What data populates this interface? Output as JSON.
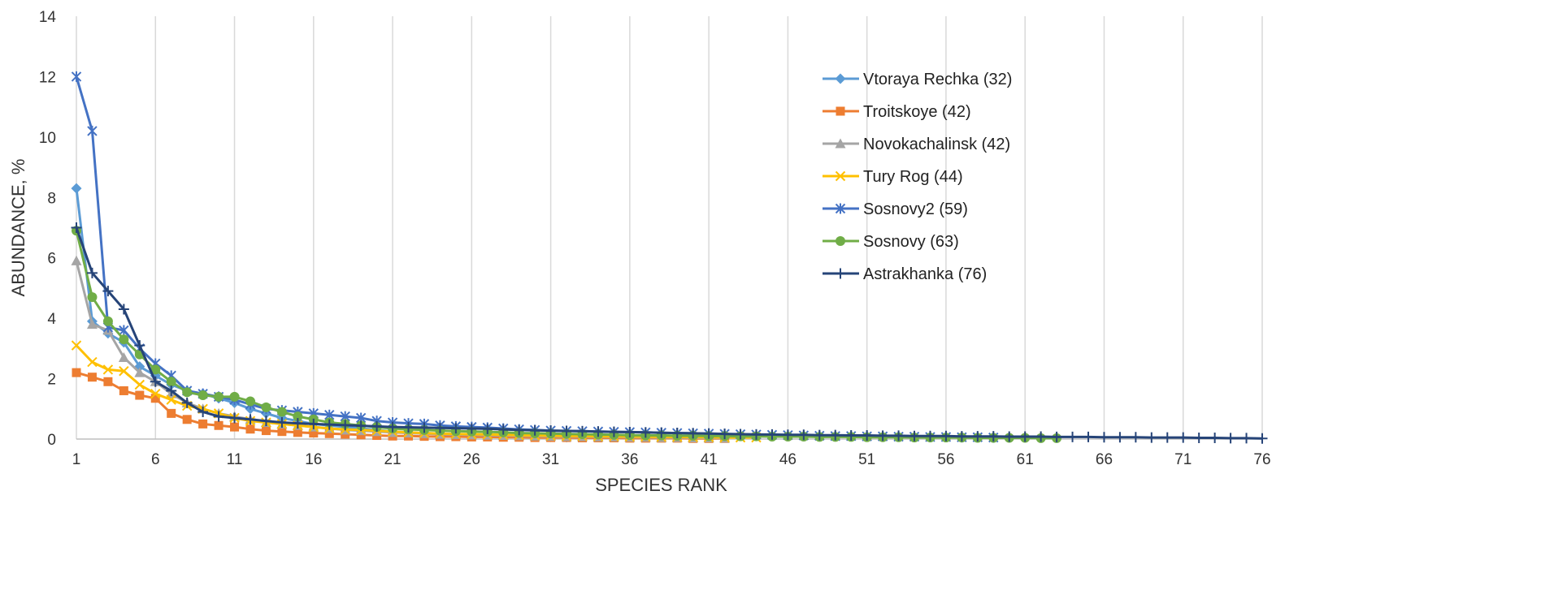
{
  "chart_data": {
    "type": "line",
    "xlabel": "SPECIES RANK",
    "ylabel": "ABUNDANCE, %",
    "xlim": [
      1,
      76
    ],
    "ylim": [
      0,
      14
    ],
    "x_ticks": [
      1,
      6,
      11,
      16,
      21,
      26,
      31,
      36,
      41,
      46,
      51,
      56,
      61,
      66,
      71,
      76
    ],
    "y_ticks": [
      0,
      2,
      4,
      6,
      8,
      10,
      12,
      14
    ],
    "x_tick_labels": [
      "1",
      "6",
      "11",
      "16",
      "21",
      "26",
      "31",
      "36",
      "41",
      "46",
      "51",
      "56",
      "61",
      "66",
      "71",
      "76"
    ],
    "y_tick_labels": [
      "0",
      "2",
      "4",
      "6",
      "8",
      "10",
      "12",
      "14"
    ],
    "grid": "vertical",
    "legend_position": "top-right",
    "series": [
      {
        "name": "Vtoraya Rechka (32)",
        "color": "#5b9bd5",
        "marker": "diamond",
        "values": [
          8.3,
          3.9,
          3.5,
          3.2,
          2.4,
          2.1,
          1.8,
          1.6,
          1.5,
          1.35,
          1.2,
          1.0,
          0.85,
          0.7,
          0.6,
          0.5,
          0.45,
          0.4,
          0.35,
          0.3,
          0.25,
          0.22,
          0.2,
          0.18,
          0.16,
          0.14,
          0.12,
          0.1,
          0.09,
          0.08,
          0.07,
          0.06
        ]
      },
      {
        "name": "Troitskoye (42)",
        "color": "#ed7d31",
        "marker": "square",
        "values": [
          2.2,
          2.05,
          1.9,
          1.6,
          1.45,
          1.35,
          0.85,
          0.65,
          0.5,
          0.45,
          0.4,
          0.33,
          0.28,
          0.25,
          0.22,
          0.2,
          0.18,
          0.16,
          0.14,
          0.12,
          0.1,
          0.1,
          0.09,
          0.08,
          0.08,
          0.07,
          0.07,
          0.06,
          0.06,
          0.05,
          0.05,
          0.05,
          0.04,
          0.04,
          0.04,
          0.03,
          0.03,
          0.03,
          0.03,
          0.02,
          0.02,
          0.02
        ]
      },
      {
        "name": "Novokachalinsk (42)",
        "color": "#a5a5a5",
        "marker": "triangle",
        "values": [
          5.9,
          3.8,
          3.6,
          2.7,
          2.2,
          1.9,
          1.5,
          1.2,
          1.0,
          0.85,
          0.75,
          0.65,
          0.55,
          0.5,
          0.45,
          0.4,
          0.35,
          0.3,
          0.28,
          0.25,
          0.22,
          0.2,
          0.18,
          0.16,
          0.15,
          0.14,
          0.13,
          0.12,
          0.11,
          0.1,
          0.09,
          0.08,
          0.08,
          0.07,
          0.07,
          0.06,
          0.06,
          0.05,
          0.05,
          0.04,
          0.04,
          0.03
        ]
      },
      {
        "name": "Tury Rog (44)",
        "color": "#ffc000",
        "marker": "x",
        "values": [
          3.1,
          2.55,
          2.3,
          2.25,
          1.8,
          1.5,
          1.3,
          1.1,
          1.0,
          0.85,
          0.7,
          0.6,
          0.55,
          0.5,
          0.45,
          0.4,
          0.35,
          0.32,
          0.3,
          0.28,
          0.25,
          0.22,
          0.2,
          0.18,
          0.17,
          0.16,
          0.15,
          0.14,
          0.13,
          0.12,
          0.11,
          0.1,
          0.1,
          0.09,
          0.09,
          0.08,
          0.08,
          0.07,
          0.07,
          0.06,
          0.06,
          0.05,
          0.05,
          0.05
        ]
      },
      {
        "name": "Sosnovy2 (59)",
        "color": "#4472c4",
        "marker": "star",
        "values": [
          12.0,
          10.2,
          3.7,
          3.6,
          3.0,
          2.5,
          2.1,
          1.6,
          1.5,
          1.4,
          1.3,
          1.15,
          1.0,
          0.95,
          0.9,
          0.85,
          0.8,
          0.75,
          0.7,
          0.6,
          0.55,
          0.52,
          0.5,
          0.45,
          0.42,
          0.4,
          0.38,
          0.35,
          0.32,
          0.3,
          0.28,
          0.27,
          0.26,
          0.25,
          0.24,
          0.23,
          0.22,
          0.21,
          0.2,
          0.19,
          0.18,
          0.17,
          0.16,
          0.15,
          0.14,
          0.13,
          0.12,
          0.11,
          0.1,
          0.1,
          0.09,
          0.09,
          0.08,
          0.08,
          0.07,
          0.07,
          0.06,
          0.06,
          0.05
        ]
      },
      {
        "name": "Sosnovy (63)",
        "color": "#70ad47",
        "marker": "circle",
        "values": [
          6.9,
          4.7,
          3.9,
          3.3,
          2.8,
          2.3,
          1.9,
          1.55,
          1.45,
          1.4,
          1.4,
          1.25,
          1.05,
          0.9,
          0.75,
          0.65,
          0.55,
          0.5,
          0.45,
          0.4,
          0.35,
          0.32,
          0.3,
          0.28,
          0.26,
          0.25,
          0.24,
          0.22,
          0.2,
          0.19,
          0.18,
          0.17,
          0.16,
          0.15,
          0.14,
          0.13,
          0.12,
          0.12,
          0.11,
          0.11,
          0.1,
          0.1,
          0.09,
          0.09,
          0.08,
          0.08,
          0.08,
          0.07,
          0.07,
          0.07,
          0.06,
          0.06,
          0.06,
          0.05,
          0.05,
          0.05,
          0.05,
          0.04,
          0.04,
          0.04,
          0.04,
          0.03,
          0.03
        ]
      },
      {
        "name": "Astrakhanka (76)",
        "color": "#264478",
        "marker": "plus",
        "values": [
          7.0,
          5.5,
          4.9,
          4.3,
          3.1,
          1.9,
          1.6,
          1.2,
          0.9,
          0.75,
          0.7,
          0.65,
          0.6,
          0.55,
          0.52,
          0.5,
          0.48,
          0.46,
          0.44,
          0.42,
          0.4,
          0.39,
          0.38,
          0.37,
          0.36,
          0.35,
          0.34,
          0.32,
          0.3,
          0.29,
          0.28,
          0.27,
          0.26,
          0.25,
          0.24,
          0.23,
          0.22,
          0.21,
          0.2,
          0.19,
          0.18,
          0.17,
          0.16,
          0.15,
          0.15,
          0.14,
          0.14,
          0.13,
          0.13,
          0.12,
          0.12,
          0.11,
          0.11,
          0.1,
          0.1,
          0.1,
          0.09,
          0.09,
          0.09,
          0.08,
          0.08,
          0.08,
          0.07,
          0.07,
          0.07,
          0.06,
          0.06,
          0.06,
          0.05,
          0.05,
          0.05,
          0.04,
          0.04,
          0.03,
          0.03,
          0.02
        ]
      }
    ]
  }
}
